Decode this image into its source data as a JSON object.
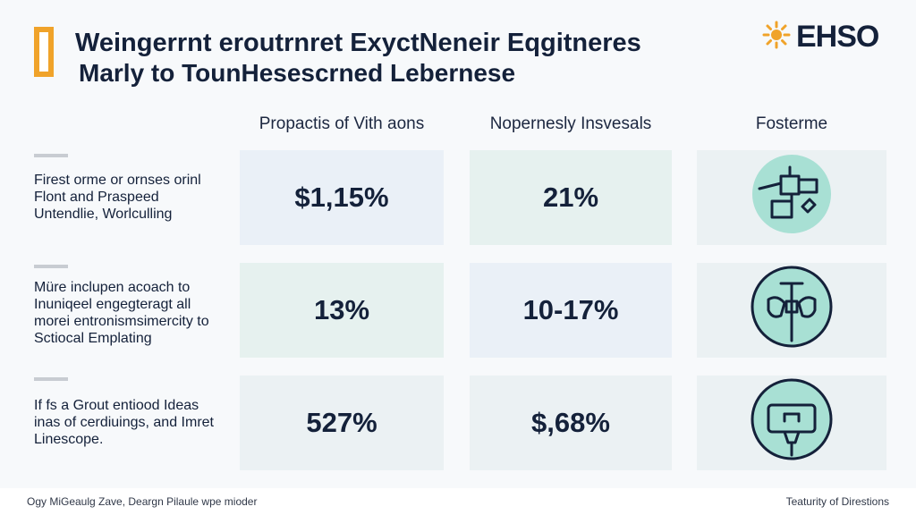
{
  "header": {
    "title": "Weingerrnt eroutrnret ExyctNeneir Eqgitneres",
    "subtitle": "Marly to TounHesescrned Lebernese",
    "logo_text": "EHSO",
    "logo_icon": "sun-icon",
    "accent_color": "#f0a32a"
  },
  "columns": [
    {
      "label": "Propactis of Vith aons"
    },
    {
      "label": "Nopernesly Insvesals"
    },
    {
      "label": "Fosterme"
    }
  ],
  "rows": [
    {
      "label": "Firest orme or ornses orinl Flont and Praspeed Untendlie, Worlculling",
      "value_1": "$1,15%",
      "value_2": "21%",
      "icon": "robot-workstation-icon"
    },
    {
      "label": "Müre inclupen acoach to Inuniqeel engegteragt all morei entronismsimercity to Sctiocal Emplating",
      "value_1": "13%",
      "value_2": "10-17%",
      "icon": "robot-arm-icon"
    },
    {
      "label": "If fs a Grout entiood Ideas inas of cerdiuings, and Imret Linescope.",
      "value_1": "527%",
      "value_2": "$,68%",
      "icon": "plug-device-icon"
    }
  ],
  "footer": {
    "left": "Ogy MiGeaulg Zave, Deargn Pilaule wpe mioder",
    "right": "Teaturity of Direstions"
  },
  "colors": {
    "navy": "#14213a",
    "teal": "#a8e0d4",
    "cell_blue": "#eaf0f7",
    "cell_green": "#e6f1ef"
  }
}
